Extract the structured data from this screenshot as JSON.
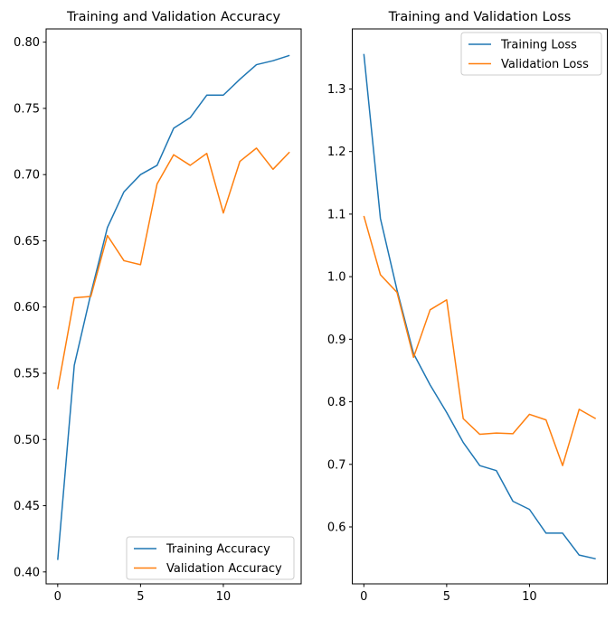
{
  "figure": {
    "background": "#ffffff",
    "text_color": "#000000",
    "frame_color": "#000000",
    "legend_border_color": "#cccccc",
    "legend_background": "#ffffff"
  },
  "chart_data": [
    {
      "type": "line",
      "title": "Training and Validation Accuracy",
      "xlabel": "",
      "ylabel": "",
      "grid": false,
      "x": [
        0,
        1,
        2,
        3,
        4,
        5,
        6,
        7,
        8,
        9,
        10,
        11,
        12,
        13,
        14
      ],
      "xlim": [
        -0.7,
        14.7
      ],
      "ylim": [
        0.391,
        0.81
      ],
      "xtick_values": [
        0,
        5,
        10
      ],
      "xtick_labels": [
        "0",
        "5",
        "10"
      ],
      "ytick_values": [
        0.4,
        0.45,
        0.5,
        0.55,
        0.6,
        0.65,
        0.7,
        0.75,
        0.8
      ],
      "ytick_labels": [
        "0.40",
        "0.45",
        "0.50",
        "0.55",
        "0.60",
        "0.65",
        "0.70",
        "0.75",
        "0.80"
      ],
      "legend_position": "lower right",
      "series": [
        {
          "name": "Training Accuracy",
          "color": "#1f77b4",
          "values": [
            0.409,
            0.556,
            0.61,
            0.66,
            0.687,
            0.7,
            0.707,
            0.735,
            0.743,
            0.76,
            0.76,
            0.772,
            0.783,
            0.786,
            0.79
          ]
        },
        {
          "name": "Validation Accuracy",
          "color": "#ff7f0e",
          "values": [
            0.538,
            0.607,
            0.608,
            0.654,
            0.635,
            0.632,
            0.693,
            0.715,
            0.707,
            0.716,
            0.671,
            0.71,
            0.72,
            0.704,
            0.717
          ]
        }
      ]
    },
    {
      "type": "line",
      "title": "Training and Validation Loss",
      "xlabel": "",
      "ylabel": "",
      "grid": false,
      "x": [
        0,
        1,
        2,
        3,
        4,
        5,
        6,
        7,
        8,
        9,
        10,
        11,
        12,
        13,
        14
      ],
      "xlim": [
        -0.7,
        14.7
      ],
      "ylim": [
        0.509,
        1.396
      ],
      "xtick_values": [
        0,
        5,
        10
      ],
      "xtick_labels": [
        "0",
        "5",
        "10"
      ],
      "ytick_values": [
        0.6,
        0.7,
        0.8,
        0.9,
        1.0,
        1.1,
        1.2,
        1.3
      ],
      "ytick_labels": [
        "0.6",
        "0.7",
        "0.8",
        "0.9",
        "1.0",
        "1.1",
        "1.2",
        "1.3"
      ],
      "legend_position": "upper right",
      "series": [
        {
          "name": "Training Loss",
          "color": "#1f77b4",
          "values": [
            1.356,
            1.093,
            0.979,
            0.877,
            0.827,
            0.783,
            0.735,
            0.698,
            0.69,
            0.641,
            0.628,
            0.59,
            0.59,
            0.555,
            0.549
          ]
        },
        {
          "name": "Validation Loss",
          "color": "#ff7f0e",
          "values": [
            1.097,
            1.003,
            0.975,
            0.871,
            0.947,
            0.963,
            0.773,
            0.748,
            0.75,
            0.749,
            0.78,
            0.771,
            0.698,
            0.788,
            0.773
          ]
        }
      ]
    }
  ]
}
